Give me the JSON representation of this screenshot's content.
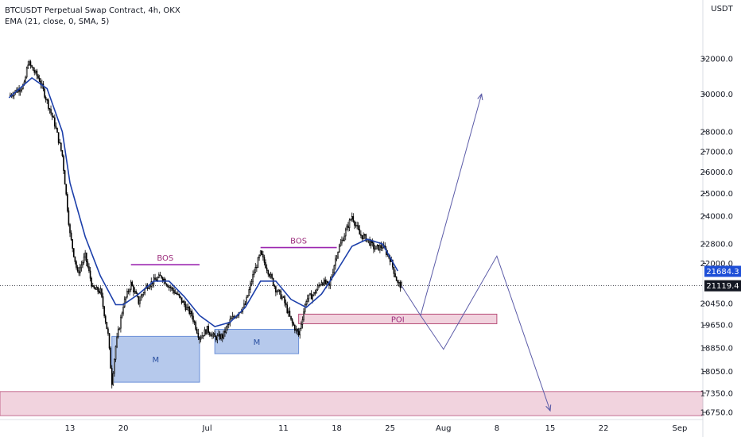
{
  "header": {
    "title": "BTCUSDT Perpetual Swap Contract, 4h, OKX",
    "indicator": "EMA (21, close, 0, SMA, 5)"
  },
  "currency": "USDT",
  "colors": {
    "candle": "#000000",
    "ema": "#1c3faa",
    "bos_line": "#9c27b0",
    "bos_text": "#9c2c7c",
    "demand_zone_fill": "#9db7e6",
    "demand_zone_stroke": "#6a8fd8",
    "poi_fill": "#f1d3de",
    "poi_stroke": "#b84f79",
    "projection": "#5c5ca8",
    "price_label_upper": "#1e4fd7",
    "price_label_current": "#131722"
  },
  "chart_data": {
    "type": "candlestick",
    "x_axis": {
      "type": "date",
      "ticks": [
        {
          "date": "2022-06-13",
          "label": "13"
        },
        {
          "date": "2022-06-20",
          "label": "20"
        },
        {
          "date": "2022-07-01",
          "label": "Jul"
        },
        {
          "date": "2022-07-11",
          "label": "11"
        },
        {
          "date": "2022-07-18",
          "label": "18"
        },
        {
          "date": "2022-07-25",
          "label": "25"
        },
        {
          "date": "2022-08-01",
          "label": "Aug"
        },
        {
          "date": "2022-08-08",
          "label": "8"
        },
        {
          "date": "2022-08-15",
          "label": "15"
        },
        {
          "date": "2022-08-22",
          "label": "22"
        },
        {
          "date": "2022-09-01",
          "label": "Sep"
        }
      ]
    },
    "y_axis": {
      "scale": "log",
      "ticks": [
        16750,
        17350,
        18050,
        18850,
        19650,
        20450,
        22000,
        22800,
        24000,
        25000,
        26000,
        27000,
        28000,
        30000,
        32000
      ],
      "tick_labels": [
        "16750.0",
        "17350.0",
        "18050.0",
        "18850.0",
        "19650.0",
        "20450.0",
        "22000.0",
        "22800.0",
        "24000.0",
        "25000.0",
        "26000.0",
        "27000.0",
        "28000.0",
        "30000.0",
        "32000.0"
      ],
      "range": [
        16500,
        34500
      ]
    },
    "price_path": [
      [
        "2022-06-05",
        29900
      ],
      [
        "2022-06-07",
        30500
      ],
      [
        "2022-06-07T12",
        31800
      ],
      [
        "2022-06-09",
        30800
      ],
      [
        "2022-06-10",
        29600
      ],
      [
        "2022-06-11",
        28400
      ],
      [
        "2022-06-12",
        26800
      ],
      [
        "2022-06-13",
        23200
      ],
      [
        "2022-06-14",
        21600
      ],
      [
        "2022-06-15",
        22300
      ],
      [
        "2022-06-16",
        21000
      ],
      [
        "2022-06-17",
        20900
      ],
      [
        "2022-06-18",
        19300
      ],
      [
        "2022-06-18T12",
        17700
      ],
      [
        "2022-06-19",
        18900
      ],
      [
        "2022-06-20",
        20400
      ],
      [
        "2022-06-21",
        21200
      ],
      [
        "2022-06-22",
        20500
      ],
      [
        "2022-06-23",
        21100
      ],
      [
        "2022-06-24",
        21300
      ],
      [
        "2022-06-25",
        21500
      ],
      [
        "2022-06-26",
        21100
      ],
      [
        "2022-06-27",
        20800
      ],
      [
        "2022-06-28",
        20400
      ],
      [
        "2022-06-29",
        20000
      ],
      [
        "2022-06-30",
        19200
      ],
      [
        "2022-07-01",
        19500
      ],
      [
        "2022-07-02",
        19200
      ],
      [
        "2022-07-03",
        19250
      ],
      [
        "2022-07-04",
        19800
      ],
      [
        "2022-07-05",
        20100
      ],
      [
        "2022-07-06",
        20400
      ],
      [
        "2022-07-07",
        21500
      ],
      [
        "2022-07-08",
        22400
      ],
      [
        "2022-07-09",
        21700
      ],
      [
        "2022-07-10",
        21000
      ],
      [
        "2022-07-11",
        20600
      ],
      [
        "2022-07-12",
        19800
      ],
      [
        "2022-07-13",
        19300
      ],
      [
        "2022-07-14",
        20600
      ],
      [
        "2022-07-15",
        20800
      ],
      [
        "2022-07-16",
        21300
      ],
      [
        "2022-07-17",
        21100
      ],
      [
        "2022-07-18",
        22400
      ],
      [
        "2022-07-19",
        23200
      ],
      [
        "2022-07-20",
        24000
      ],
      [
        "2022-07-21",
        23200
      ],
      [
        "2022-07-22",
        23000
      ],
      [
        "2022-07-23",
        22600
      ],
      [
        "2022-07-24",
        22700
      ],
      [
        "2022-07-25",
        22200
      ],
      [
        "2022-07-26",
        21200
      ],
      [
        "2022-07-26T12",
        21119
      ]
    ],
    "ema": [
      [
        "2022-06-05",
        29800
      ],
      [
        "2022-06-08",
        30900
      ],
      [
        "2022-06-10",
        30300
      ],
      [
        "2022-06-12",
        28000
      ],
      [
        "2022-06-13",
        25500
      ],
      [
        "2022-06-15",
        23100
      ],
      [
        "2022-06-17",
        21500
      ],
      [
        "2022-06-19",
        20400
      ],
      [
        "2022-06-20",
        20400
      ],
      [
        "2022-06-22",
        20800
      ],
      [
        "2022-06-24",
        21300
      ],
      [
        "2022-06-26",
        21300
      ],
      [
        "2022-06-28",
        20700
      ],
      [
        "2022-06-30",
        20000
      ],
      [
        "2022-07-02",
        19600
      ],
      [
        "2022-07-04",
        19750
      ],
      [
        "2022-07-06",
        20300
      ],
      [
        "2022-07-08",
        21300
      ],
      [
        "2022-07-10",
        21300
      ],
      [
        "2022-07-12",
        20600
      ],
      [
        "2022-07-14",
        20300
      ],
      [
        "2022-07-16",
        20800
      ],
      [
        "2022-07-18",
        21700
      ],
      [
        "2022-07-20",
        22700
      ],
      [
        "2022-07-22",
        23000
      ],
      [
        "2022-07-24",
        22800
      ],
      [
        "2022-07-26",
        21700
      ]
    ],
    "annotations": {
      "bos": [
        {
          "label": "BOS",
          "y": 21950,
          "from": "2022-06-21",
          "to": "2022-06-30"
        },
        {
          "label": "BOS",
          "y": 22650,
          "from": "2022-07-08",
          "to": "2022-07-18"
        }
      ],
      "demand_zones": [
        {
          "label": "M",
          "from": "2022-06-18T12",
          "to": "2022-06-30",
          "y_top": 19250,
          "y_bottom": 17700
        },
        {
          "label": "M",
          "from": "2022-07-02",
          "to": "2022-07-13",
          "y_top": 19500,
          "y_bottom": 18650
        }
      ],
      "poi": {
        "label": "POI",
        "from": "2022-07-13",
        "to": "2022-08-08",
        "y_top": 20050,
        "y_bottom": 19700
      },
      "lower_zone": {
        "y_top": 17400,
        "y_bottom": 16650
      },
      "projection_up": [
        [
          "2022-07-26T12",
          21119
        ],
        [
          "2022-07-29",
          20000
        ],
        [
          "2022-08-06",
          30000
        ]
      ],
      "projection_down": [
        [
          "2022-07-29",
          20000
        ],
        [
          "2022-08-01",
          18800
        ],
        [
          "2022-08-08",
          22300
        ],
        [
          "2022-08-15",
          16800
        ]
      ]
    },
    "price_labels": [
      {
        "value": "21684.3",
        "y": 21684.3,
        "style": "upper"
      },
      {
        "value": "21119.4",
        "y": 21119.4,
        "style": "current"
      }
    ],
    "current_price": 21119.4,
    "grid": false
  }
}
